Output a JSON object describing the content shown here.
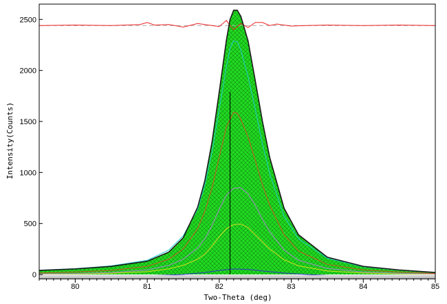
{
  "chart_data": {
    "type": "line",
    "title": "",
    "xlabel": "Two-Theta (deg)",
    "ylabel": "Intensity(Counts)",
    "xlim": [
      79.5,
      85.0
    ],
    "ylim": [
      -40,
      2650
    ],
    "x_ticks": [
      80,
      81,
      82,
      83,
      84,
      85
    ],
    "y_ticks": [
      0,
      500,
      1000,
      1500,
      2000,
      2500
    ],
    "grid": false,
    "legend": "none",
    "peak_marker": {
      "x": 82.15,
      "y": 1790
    },
    "difference_baseline": 2440,
    "colors": {
      "fit": "#1a1a1a",
      "fill": "#22dd22",
      "hatch": "#15a015",
      "difference": "#ee2222",
      "difference_baseline": "#aaaaaa",
      "cyan": "#22cccc",
      "orange": "#cc5522",
      "lavender": "#aa88cc",
      "yellow": "#dddd22",
      "blue": "#3333cc",
      "marker": "#000000"
    },
    "series": [
      {
        "color_key": "fit",
        "x": [
          79.5,
          80.0,
          80.5,
          81.0,
          81.3,
          81.5,
          81.7,
          81.8,
          81.9,
          82.0,
          82.1,
          82.15,
          82.2,
          82.25,
          82.3,
          82.4,
          82.5,
          82.6,
          82.7,
          82.9,
          83.1,
          83.5,
          84.0,
          84.5,
          85.0
        ],
        "y": [
          40,
          55,
          80,
          130,
          220,
          360,
          660,
          920,
          1300,
          1790,
          2300,
          2500,
          2590,
          2590,
          2530,
          2290,
          1900,
          1500,
          1150,
          650,
          390,
          170,
          80,
          45,
          20
        ]
      },
      {
        "color_key": "cyan",
        "x": [
          79.5,
          80.0,
          80.5,
          81.0,
          81.3,
          81.5,
          81.7,
          81.8,
          81.9,
          82.0,
          82.1,
          82.15,
          82.2,
          82.25,
          82.3,
          82.4,
          82.5,
          82.6,
          82.7,
          82.9,
          83.1,
          83.5,
          84.0,
          84.5,
          85.0
        ],
        "y": [
          42,
          58,
          85,
          140,
          240,
          380,
          640,
          880,
          1200,
          1620,
          2040,
          2220,
          2290,
          2280,
          2200,
          1940,
          1620,
          1280,
          990,
          570,
          350,
          160,
          75,
          42,
          18
        ]
      },
      {
        "color_key": "orange",
        "x": [
          79.5,
          80.0,
          80.5,
          81.0,
          81.3,
          81.5,
          81.7,
          81.8,
          81.9,
          82.0,
          82.1,
          82.2,
          82.25,
          82.3,
          82.4,
          82.5,
          82.6,
          82.7,
          82.9,
          83.1,
          83.5,
          84.0,
          84.5,
          85.0
        ],
        "y": [
          15,
          25,
          40,
          80,
          150,
          250,
          450,
          620,
          850,
          1150,
          1450,
          1590,
          1580,
          1520,
          1350,
          1120,
          880,
          680,
          390,
          230,
          100,
          45,
          25,
          10
        ]
      },
      {
        "color_key": "lavender",
        "x": [
          79.5,
          80.0,
          80.5,
          81.0,
          81.3,
          81.5,
          81.7,
          81.8,
          81.9,
          82.0,
          82.1,
          82.2,
          82.3,
          82.4,
          82.5,
          82.6,
          82.7,
          82.9,
          83.1,
          83.5,
          84.0,
          84.5,
          85.0
        ],
        "y": [
          5,
          10,
          20,
          45,
          90,
          150,
          260,
          350,
          480,
          640,
          780,
          845,
          850,
          790,
          680,
          540,
          420,
          240,
          140,
          60,
          25,
          12,
          5
        ]
      },
      {
        "color_key": "yellow",
        "x": [
          79.5,
          80.0,
          80.5,
          81.0,
          81.3,
          81.5,
          81.7,
          81.8,
          81.9,
          82.0,
          82.1,
          82.2,
          82.3,
          82.4,
          82.5,
          82.6,
          82.7,
          82.9,
          83.1,
          83.5,
          84.0,
          84.5,
          85.0
        ],
        "y": [
          3,
          6,
          12,
          28,
          55,
          90,
          150,
          200,
          280,
          370,
          450,
          490,
          495,
          460,
          390,
          320,
          250,
          145,
          85,
          35,
          15,
          7,
          3
        ]
      },
      {
        "color_key": "blue",
        "x": [
          79.5,
          80.0,
          80.5,
          81.0,
          81.5,
          81.8,
          82.0,
          82.2,
          82.4,
          82.6,
          82.9,
          83.2,
          83.6,
          84.0,
          84.5,
          85.0
        ],
        "y": [
          -25,
          -22,
          -18,
          -12,
          0,
          20,
          40,
          55,
          50,
          35,
          15,
          0,
          -12,
          -18,
          -22,
          -25
        ]
      },
      {
        "color_key": "difference",
        "x": [
          79.5,
          80.0,
          80.5,
          80.9,
          81.0,
          81.1,
          81.3,
          81.5,
          81.7,
          81.9,
          82.0,
          82.1,
          82.15,
          82.2,
          82.25,
          82.3,
          82.4,
          82.5,
          82.6,
          82.7,
          82.8,
          83.0,
          83.2,
          83.5,
          84.0,
          84.5,
          85.0
        ],
        "y": [
          2440,
          2445,
          2440,
          2450,
          2470,
          2445,
          2450,
          2425,
          2460,
          2440,
          2430,
          2490,
          2440,
          2400,
          2430,
          2460,
          2420,
          2470,
          2470,
          2440,
          2455,
          2435,
          2440,
          2445,
          2440,
          2445,
          2440
        ]
      }
    ]
  }
}
